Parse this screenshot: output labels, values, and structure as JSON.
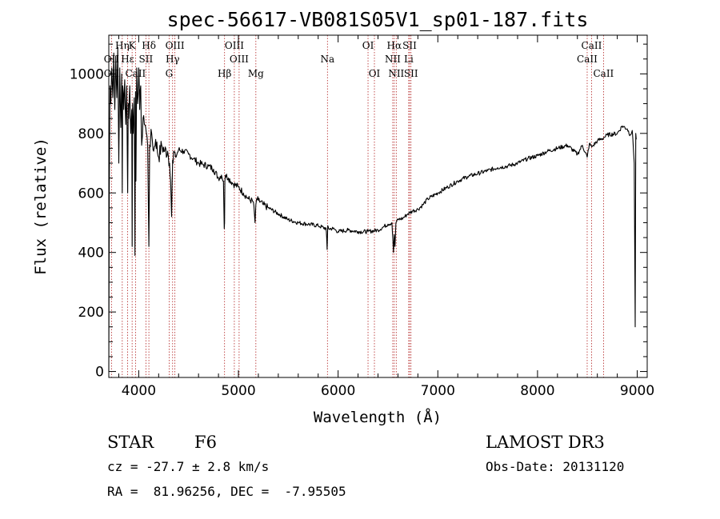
{
  "chart_data": {
    "type": "line",
    "title": "spec-56617-VB081S05V1_sp01-187.fits",
    "xlabel": "Wavelength (Å)",
    "ylabel": "Flux (relative)",
    "xlim": [
      3700,
      9100
    ],
    "ylim": [
      -20,
      1130
    ],
    "xticks": [
      4000,
      5000,
      6000,
      7000,
      8000,
      9000
    ],
    "yticks": [
      0,
      200,
      400,
      600,
      800,
      1000
    ],
    "series": [
      {
        "name": "spectrum",
        "x": [
          3700,
          3705,
          3712,
          3720,
          3730,
          3740,
          3750,
          3760,
          3770,
          3780,
          3790,
          3800,
          3810,
          3820,
          3830,
          3835,
          3840,
          3850,
          3860,
          3870,
          3880,
          3889,
          3895,
          3900,
          3910,
          3920,
          3930,
          3934,
          3938,
          3945,
          3955,
          3962,
          3968,
          3972,
          3980,
          3990,
          4000,
          4010,
          4020,
          4030,
          4050,
          4070,
          4090,
          4102,
          4110,
          4130,
          4150,
          4170,
          4200,
          4230,
          4260,
          4290,
          4310,
          4320,
          4330,
          4340,
          4345,
          4350,
          4370,
          4400,
          4450,
          4500,
          4550,
          4600,
          4650,
          4700,
          4750,
          4800,
          4830,
          4850,
          4858,
          4861,
          4864,
          4870,
          4900,
          4950,
          5000,
          5050,
          5100,
          5150,
          5167,
          5175,
          5183,
          5200,
          5250,
          5300,
          5400,
          5500,
          5600,
          5700,
          5800,
          5880,
          5890,
          5896,
          5905,
          5950,
          6000,
          6100,
          6200,
          6300,
          6400,
          6450,
          6500,
          6540,
          6555,
          6563,
          6570,
          6580,
          6600,
          6650,
          6700,
          6750,
          6800,
          6850,
          6900,
          7000,
          7100,
          7200,
          7300,
          7400,
          7500,
          7600,
          7700,
          7800,
          7900,
          8000,
          8100,
          8200,
          8300,
          8400,
          8450,
          8498,
          8520,
          8542,
          8560,
          8600,
          8662,
          8700,
          8800,
          8850,
          8900,
          8930,
          8950,
          8970,
          8980,
          8985,
          8990
        ],
        "values": [
          0,
          620,
          960,
          900,
          1020,
          920,
          1070,
          880,
          1060,
          920,
          1090,
          700,
          1020,
          820,
          1000,
          600,
          960,
          880,
          980,
          830,
          960,
          600,
          900,
          850,
          960,
          800,
          880,
          420,
          900,
          800,
          920,
          390,
          940,
          640,
          1020,
          900,
          1020,
          880,
          960,
          760,
          860,
          820,
          760,
          420,
          760,
          800,
          740,
          780,
          720,
          760,
          740,
          740,
          700,
          640,
          520,
          710,
          700,
          740,
          720,
          745,
          740,
          730,
          715,
          700,
          695,
          690,
          680,
          650,
          660,
          640,
          480,
          500,
          640,
          660,
          650,
          630,
          620,
          600,
          580,
          570,
          500,
          560,
          580,
          575,
          560,
          550,
          530,
          510,
          500,
          495,
          490,
          480,
          410,
          490,
          480,
          480,
          470,
          475,
          470,
          470,
          475,
          485,
          495,
          500,
          400,
          460,
          420,
          500,
          510,
          515,
          530,
          540,
          545,
          560,
          580,
          600,
          620,
          640,
          655,
          665,
          675,
          685,
          690,
          700,
          715,
          725,
          740,
          750,
          760,
          730,
          760,
          720,
          765,
          755,
          760,
          775,
          785,
          795,
          800,
          825,
          815,
          795,
          810,
          700,
          150,
          800,
          780
        ]
      }
    ],
    "lines": [
      {
        "label": "Hη",
        "wl": 3835,
        "row": 1
      },
      {
        "label": "K",
        "wl": 3934,
        "row": 1
      },
      {
        "label": "Hδ",
        "wl": 4102,
        "row": 1
      },
      {
        "label": "OIII",
        "wl": 4363,
        "row": 1
      },
      {
        "label": "OIII",
        "wl": 4959,
        "row": 1
      },
      {
        "label": "OI",
        "wl": 6300,
        "row": 1
      },
      {
        "label": "Hα",
        "wl": 6563,
        "row": 1
      },
      {
        "label": "SII",
        "wl": 6717,
        "row": 1
      },
      {
        "label": "CaII",
        "wl": 8542,
        "row": 1
      },
      {
        "label": "OII",
        "wl": 3727,
        "row": 2
      },
      {
        "label": "Hε",
        "wl": 3889,
        "row": 2
      },
      {
        "label": "SII",
        "wl": 4072,
        "row": 2
      },
      {
        "label": "Hγ",
        "wl": 4340,
        "row": 2
      },
      {
        "label": "OIII",
        "wl": 5007,
        "row": 2
      },
      {
        "label": "Na",
        "wl": 5893,
        "row": 2
      },
      {
        "label": "NII",
        "wl": 6548,
        "row": 2
      },
      {
        "label": "Li",
        "wl": 6708,
        "row": 2
      },
      {
        "label": "CaII",
        "wl": 8498,
        "row": 2
      },
      {
        "label": "OII",
        "wl": 3727,
        "row": 3
      },
      {
        "label": "CaII",
        "wl": 3968,
        "row": 3
      },
      {
        "label": "G",
        "wl": 4305,
        "row": 3
      },
      {
        "label": "Hβ",
        "wl": 4861,
        "row": 3
      },
      {
        "label": "Mg",
        "wl": 5175,
        "row": 3
      },
      {
        "label": "OI",
        "wl": 6364,
        "row": 3
      },
      {
        "label": "NII",
        "wl": 6583,
        "row": 3
      },
      {
        "label": "SII",
        "wl": 6731,
        "row": 3
      },
      {
        "label": "CaII",
        "wl": 8662,
        "row": 3
      }
    ]
  },
  "info": {
    "object_class": "STAR",
    "subclass": "F6",
    "survey": "LAMOST DR3",
    "cz": "cz = -27.7 ± 2.8 km/s",
    "obs_date": "Obs-Date: 20131120",
    "coords": "RA =  81.96256, DEC =  -7.95505"
  }
}
